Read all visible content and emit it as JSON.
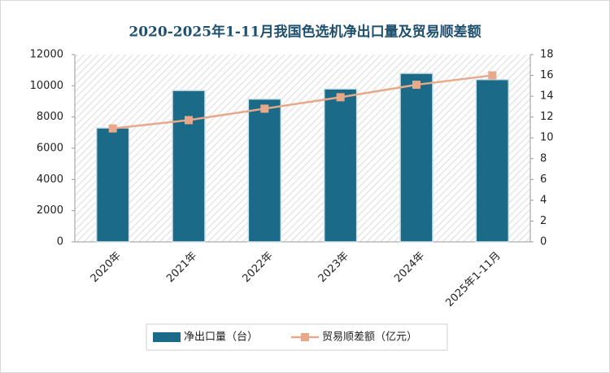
{
  "chart_data": {
    "type": "bar",
    "title": "2020-2025年1-11月我国色选机净出口量及贸易顺差额",
    "categories": [
      "2020年",
      "2021年",
      "2022年",
      "2023年",
      "2024年",
      "2025年1-11月"
    ],
    "series": [
      {
        "name": "净出口量（台）",
        "type": "bar",
        "color": "#1b6a87",
        "values": [
          7300,
          9700,
          9150,
          9800,
          10800,
          10400
        ]
      },
      {
        "name": "贸易顺差额（亿元）",
        "type": "line",
        "axis": "y2",
        "color": "#e8a88a",
        "values": [
          10.9,
          11.7,
          12.8,
          13.9,
          15.1,
          16.0
        ]
      }
    ],
    "ylim": [
      0,
      12000
    ],
    "yticks": [
      0,
      2000,
      4000,
      6000,
      8000,
      10000,
      12000
    ],
    "y2lim": [
      0,
      18
    ],
    "y2ticks": [
      0,
      2,
      4,
      6,
      8,
      10,
      12,
      14,
      16,
      18
    ],
    "legend": "bottom"
  }
}
